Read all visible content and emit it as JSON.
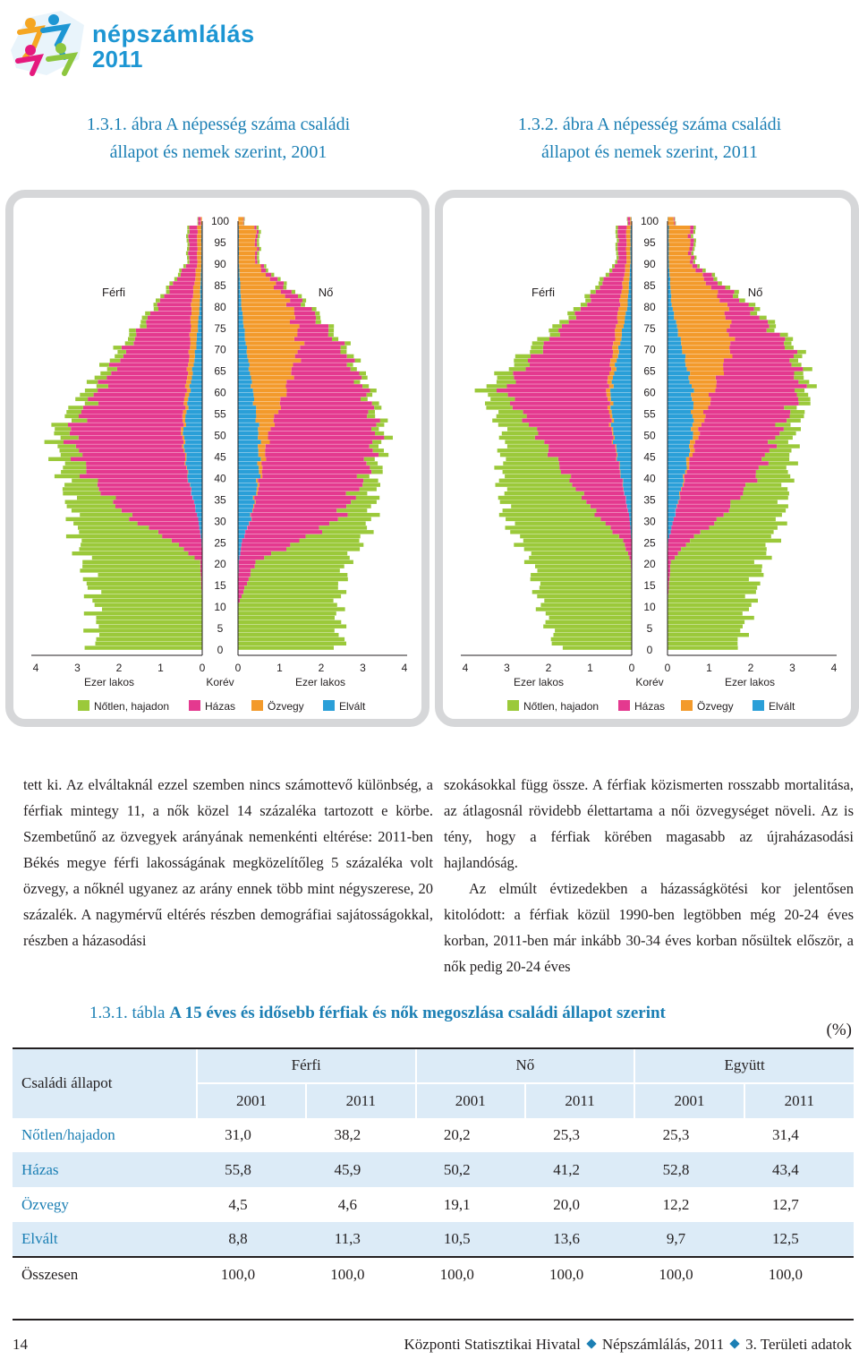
{
  "logo": {
    "line1": "népszámlálás",
    "line2": "2011",
    "colors": [
      "#f5a623",
      "#1d96d3",
      "#e5197d",
      "#8dc63f"
    ]
  },
  "figures": [
    {
      "id": "2001",
      "number": "1.3.1. ábra",
      "title_line1": "A népesség száma családi",
      "title_line2": "állapot és nemek szerint, 2001"
    },
    {
      "id": "2011",
      "number": "1.3.2. ábra",
      "title_line1": "A népesség száma családi",
      "title_line2": "állapot és nemek szerint, 2011"
    }
  ],
  "pyramid_labels": {
    "male": "Férfi",
    "female": "Nő",
    "age_axis": "Korév",
    "x_axis": "Ezer lakos",
    "age_ticks": [
      "100",
      "95",
      "90",
      "85",
      "80",
      "75",
      "70",
      "65",
      "60",
      "55",
      "50",
      "45",
      "40",
      "35",
      "30",
      "25",
      "20",
      "15",
      "10",
      "5",
      "0"
    ],
    "x_ticks_left": [
      "4",
      "3",
      "2",
      "1",
      "0"
    ],
    "x_ticks_right": [
      "0",
      "1",
      "2",
      "3",
      "4"
    ],
    "legend": [
      {
        "label": "Nőtlen, hajadon",
        "color": "#9bc93a"
      },
      {
        "label": "Házas",
        "color": "#e4398f"
      },
      {
        "label": "Özvegy",
        "color": "#f39a2b"
      },
      {
        "label": "Elvált",
        "color": "#2a9fd8"
      }
    ]
  },
  "chart_data": [
    {
      "type": "bar",
      "title": "A népesség száma családi állapot és nemek szerint, 2001",
      "xlabel": "Ezer lakos",
      "ylabel": "Korév",
      "xlim": [
        0,
        4
      ],
      "ylim": [
        0,
        100
      ],
      "series": [
        {
          "name": "Férfi – Nőtlen, hajadon",
          "x": [
            0,
            10,
            20,
            25,
            30,
            40,
            50,
            60,
            70,
            80,
            90
          ],
          "values": [
            2.6,
            2.6,
            2.8,
            2.3,
            1.4,
            0.6,
            0.4,
            0.3,
            0.2,
            0.1,
            0.05
          ]
        },
        {
          "name": "Férfi – Házas",
          "x": [
            0,
            10,
            20,
            25,
            30,
            40,
            50,
            60,
            70,
            80,
            90
          ],
          "values": [
            0,
            0,
            0.05,
            0.7,
            1.6,
            2.4,
            2.7,
            2.1,
            1.5,
            0.8,
            0.2
          ]
        },
        {
          "name": "Férfi – Özvegy",
          "x": [
            0,
            10,
            20,
            25,
            30,
            40,
            50,
            60,
            70,
            80,
            90
          ],
          "values": [
            0,
            0,
            0,
            0,
            0,
            0.01,
            0.05,
            0.1,
            0.15,
            0.2,
            0.1
          ]
        },
        {
          "name": "Férfi – Elvált",
          "x": [
            0,
            10,
            20,
            25,
            30,
            40,
            50,
            60,
            70,
            80,
            90
          ],
          "values": [
            0,
            0,
            0,
            0.02,
            0.1,
            0.35,
            0.45,
            0.3,
            0.15,
            0.06,
            0.02
          ]
        },
        {
          "name": "Nő – Nőtlen, hajadon",
          "x": [
            0,
            10,
            20,
            25,
            30,
            40,
            50,
            60,
            70,
            80,
            90
          ],
          "values": [
            2.5,
            2.4,
            2.2,
            1.5,
            0.8,
            0.3,
            0.2,
            0.15,
            0.15,
            0.1,
            0.05
          ]
        },
        {
          "name": "Nő – Házas",
          "x": [
            0,
            10,
            20,
            25,
            30,
            40,
            50,
            60,
            70,
            80,
            90
          ],
          "values": [
            0,
            0,
            0.4,
            1.4,
            2.1,
            2.5,
            2.6,
            1.9,
            1.0,
            0.35,
            0.05
          ]
        },
        {
          "name": "Nő – Özvegy",
          "x": [
            0,
            10,
            20,
            25,
            30,
            40,
            50,
            60,
            70,
            80,
            90
          ],
          "values": [
            0,
            0,
            0,
            0,
            0.01,
            0.05,
            0.25,
            0.8,
            1.3,
            1.2,
            0.4
          ]
        },
        {
          "name": "Nő – Elvált",
          "x": [
            0,
            10,
            20,
            25,
            30,
            40,
            50,
            60,
            70,
            80,
            90
          ],
          "values": [
            0,
            0,
            0.02,
            0.1,
            0.3,
            0.5,
            0.5,
            0.35,
            0.2,
            0.08,
            0.02
          ]
        }
      ]
    },
    {
      "type": "bar",
      "title": "A népesség száma családi állapot és nemek szerint, 2011",
      "xlabel": "Ezer lakos",
      "ylabel": "Korév",
      "xlim": [
        0,
        4
      ],
      "ylim": [
        0,
        100
      ],
      "series": [
        {
          "name": "Férfi – Nőtlen, hajadon",
          "x": [
            0,
            10,
            20,
            25,
            30,
            40,
            50,
            60,
            70,
            80,
            90
          ],
          "values": [
            1.8,
            2.2,
            2.4,
            2.5,
            2.3,
            1.6,
            0.8,
            0.5,
            0.3,
            0.15,
            0.05
          ]
        },
        {
          "name": "Férfi – Házas",
          "x": [
            0,
            10,
            20,
            25,
            30,
            40,
            50,
            60,
            70,
            80,
            90
          ],
          "values": [
            0,
            0,
            0.02,
            0.2,
            0.7,
            1.3,
            1.8,
            2.5,
            1.7,
            0.8,
            0.2
          ]
        },
        {
          "name": "Férfi – Özvegy",
          "x": [
            0,
            10,
            20,
            25,
            30,
            40,
            50,
            60,
            70,
            80,
            90
          ],
          "values": [
            0,
            0,
            0,
            0,
            0,
            0.01,
            0.03,
            0.1,
            0.15,
            0.2,
            0.1
          ]
        },
        {
          "name": "Férfi – Elvált",
          "x": [
            0,
            10,
            20,
            25,
            30,
            40,
            50,
            60,
            70,
            80,
            90
          ],
          "values": [
            0,
            0,
            0,
            0.01,
            0.05,
            0.25,
            0.45,
            0.5,
            0.3,
            0.1,
            0.03
          ]
        },
        {
          "name": "Nő – Nőtlen, hajadon",
          "x": [
            0,
            10,
            20,
            25,
            30,
            40,
            50,
            60,
            70,
            80,
            90
          ],
          "values": [
            1.7,
            2.0,
            2.2,
            2.0,
            1.5,
            0.8,
            0.4,
            0.25,
            0.2,
            0.15,
            0.05
          ]
        },
        {
          "name": "Nő – Házas",
          "x": [
            0,
            10,
            20,
            25,
            30,
            40,
            50,
            60,
            70,
            80,
            90
          ],
          "values": [
            0,
            0,
            0.08,
            0.5,
            1.1,
            1.7,
            1.9,
            2.1,
            1.4,
            0.5,
            0.08
          ]
        },
        {
          "name": "Nő – Özvegy",
          "x": [
            0,
            10,
            20,
            25,
            30,
            40,
            50,
            60,
            70,
            80,
            90
          ],
          "values": [
            0,
            0,
            0,
            0,
            0,
            0.03,
            0.15,
            0.5,
            1.2,
            1.3,
            0.5
          ]
        },
        {
          "name": "Nő – Elvált",
          "x": [
            0,
            10,
            20,
            25,
            30,
            40,
            50,
            60,
            70,
            80,
            90
          ],
          "values": [
            0,
            0,
            0,
            0.02,
            0.15,
            0.4,
            0.6,
            0.6,
            0.35,
            0.1,
            0.03
          ]
        }
      ]
    }
  ],
  "text": {
    "left": "tett ki. Az elváltaknál ezzel szemben nincs számottevő különbség, a férfiak mintegy 11, a nők közel 14 százaléka tartozott e körbe. Szembetűnő az özvegyek arányának nemenkénti eltérése: 2011-ben Békés megye férfi lakosságának megközelítőleg 5 százaléka volt özvegy, a nőknél ugyanez az arány ennek több mint négyszerese, 20 százalék. A nagymérvű eltérés részben demográfiai sajátosságokkal, részben a házasodási",
    "right_p1": "szokásokkal függ össze. A férfiak közismerten rosszabb mortalitása, az átlagosnál rövidebb élettartama a női özvegységet növeli. Az is tény, hogy a férfiak körében magasabb az újraházasodási hajlandóság.",
    "right_p2": "Az elmúlt évtizedekben a házasságkötési kor jelentősen kitolódott: a férfiak közül 1990-ben legtöbben még 20-24 éves korban, 2011-ben már inkább 30-34 éves korban nősültek először, a nők pedig 20-24 éves"
  },
  "table": {
    "number": "1.3.1. tábla",
    "title": "A 15 éves és idősebb férfiak és nők megoszlása családi állapot szerint",
    "unit": "(%)",
    "row_header": "Családi állapot",
    "groups": [
      "Férfi",
      "Nő",
      "Együtt"
    ],
    "years": [
      "2001",
      "2011",
      "2001",
      "2011",
      "2001",
      "2011"
    ],
    "rows": [
      {
        "label": "Nőtlen/hajadon",
        "values": [
          "31,0",
          "38,2",
          "20,2",
          "25,3",
          "25,3",
          "31,4"
        ]
      },
      {
        "label": "Házas",
        "values": [
          "55,8",
          "45,9",
          "50,2",
          "41,2",
          "52,8",
          "43,4"
        ]
      },
      {
        "label": "Özvegy",
        "values": [
          "4,5",
          "4,6",
          "19,1",
          "20,0",
          "12,2",
          "12,7"
        ]
      },
      {
        "label": "Elvált",
        "values": [
          "8,8",
          "11,3",
          "10,5",
          "13,6",
          "9,7",
          "12,5"
        ]
      },
      {
        "label": "Összesen",
        "values": [
          "100,0",
          "100,0",
          "100,0",
          "100,0",
          "100,0",
          "100,0"
        ]
      }
    ]
  },
  "footer": {
    "page": "14",
    "publisher": "Központi Statisztikai Hivatal",
    "series": "Népszámlálás, 2011",
    "volume": "3. Területi adatok"
  }
}
